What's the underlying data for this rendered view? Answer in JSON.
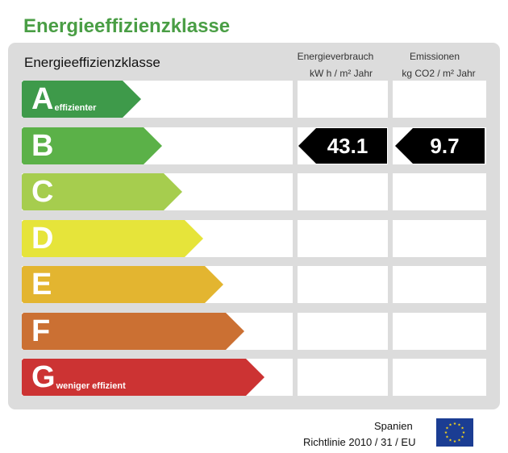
{
  "title": "Energieeffizienzklasse",
  "panel": {
    "heading": "Energieeffizienzklasse",
    "energy_header": "Energieverbrauch",
    "energy_unit": "kW h / m² Jahr",
    "emissions_header": "Emissionen",
    "emissions_unit": "kg CO2 / m² Jahr"
  },
  "classes": [
    {
      "letter": "A",
      "label": "effizienter",
      "color": "#3e9a4a"
    },
    {
      "letter": "B",
      "label": "",
      "color": "#5bb148"
    },
    {
      "letter": "C",
      "label": "",
      "color": "#a6cd4e"
    },
    {
      "letter": "D",
      "label": "",
      "color": "#e6e43a"
    },
    {
      "letter": "E",
      "label": "",
      "color": "#e3b530"
    },
    {
      "letter": "F",
      "label": "",
      "color": "#cb7033"
    },
    {
      "letter": "G",
      "label": "weniger effizient",
      "color": "#cc3333"
    }
  ],
  "rating": {
    "class": "B",
    "energy_value": "43.1",
    "emissions_value": "9.7"
  },
  "footer": {
    "country": "Spanien",
    "directive": "Richtlinie 2010 / 31 / EU"
  },
  "flag_icon": "eu-flag-icon"
}
